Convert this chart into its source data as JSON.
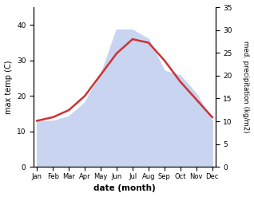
{
  "months": [
    "Jan",
    "Feb",
    "Mar",
    "Apr",
    "May",
    "Jun",
    "Jul",
    "Aug",
    "Sep",
    "Oct",
    "Nov",
    "Dec"
  ],
  "month_indices": [
    0,
    1,
    2,
    3,
    4,
    5,
    6,
    7,
    8,
    9,
    10,
    11
  ],
  "temp": [
    13,
    14,
    16,
    20,
    26,
    32,
    36,
    35,
    30,
    24,
    19,
    14
  ],
  "precip": [
    10,
    10,
    11,
    14,
    20,
    30,
    30,
    28,
    21,
    20,
    16,
    10
  ],
  "temp_color": "#cc3333",
  "precip_fill_color": "#c8d4f0",
  "precip_line_color": "#c8d4f0",
  "xlabel": "date (month)",
  "ylabel_left": "max temp (C)",
  "ylabel_right": "med. precipitation (kg/m2)",
  "ylim_left": [
    0,
    45
  ],
  "ylim_right": [
    0,
    35
  ],
  "yticks_left": [
    0,
    10,
    20,
    30,
    40
  ],
  "yticks_right": [
    0,
    5,
    10,
    15,
    20,
    25,
    30,
    35
  ],
  "background_color": "#ffffff",
  "temp_linewidth": 1.8
}
